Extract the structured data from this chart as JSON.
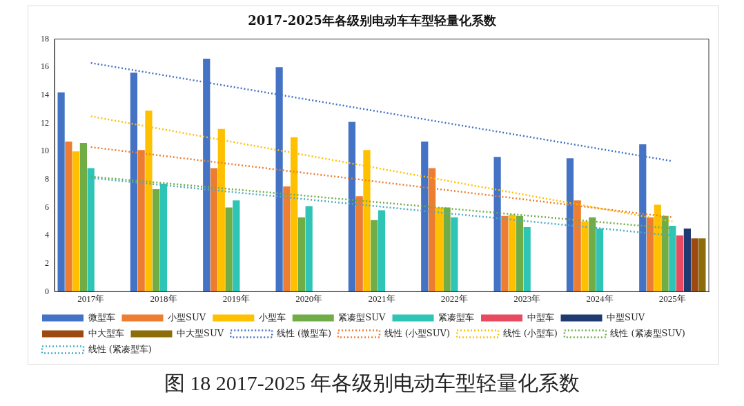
{
  "chart_data": {
    "type": "bar",
    "title": "2017-2025年各级别电动车车型轻量化系数",
    "categories": [
      "2017年",
      "2018年",
      "2019年",
      "2020年",
      "2021年",
      "2022年",
      "2023年",
      "2024年",
      "2025年"
    ],
    "ylim": [
      0,
      18
    ],
    "yticks": [
      0,
      2,
      4,
      6,
      8,
      10,
      12,
      14,
      16,
      18
    ],
    "grid": false,
    "legend": "bottom",
    "series": [
      {
        "name": "微型车",
        "color": "#4472c4",
        "values": [
          14.2,
          15.6,
          16.6,
          16.0,
          12.1,
          10.7,
          9.6,
          9.5,
          10.5
        ]
      },
      {
        "name": "小型SUV",
        "color": "#ed7d31",
        "values": [
          10.7,
          10.1,
          8.8,
          7.5,
          6.8,
          8.8,
          5.4,
          6.5,
          5.3
        ]
      },
      {
        "name": "小型车",
        "color": "#ffc000",
        "values": [
          10.0,
          12.9,
          11.6,
          11.0,
          10.1,
          6.0,
          5.5,
          5.0,
          6.2
        ]
      },
      {
        "name": "紧凑型SUV",
        "color": "#70ad47",
        "values": [
          10.6,
          7.3,
          6.0,
          5.3,
          5.1,
          6.0,
          5.4,
          5.3,
          5.4
        ]
      },
      {
        "name": "紧凑型车",
        "color": "#2ec4b6",
        "values": [
          8.8,
          7.7,
          6.5,
          6.1,
          5.8,
          5.3,
          4.6,
          4.5,
          4.7
        ]
      },
      {
        "name": "中型车",
        "color": "#e84a5f",
        "values": [
          null,
          null,
          null,
          null,
          null,
          null,
          null,
          null,
          4.0
        ]
      },
      {
        "name": "中型SUV",
        "color": "#1f3a70",
        "values": [
          null,
          null,
          null,
          null,
          null,
          null,
          null,
          null,
          4.5
        ]
      },
      {
        "name": "中大型车",
        "color": "#9c4a0f",
        "values": [
          null,
          null,
          null,
          null,
          null,
          null,
          null,
          null,
          3.8
        ]
      },
      {
        "name": "中大型SUV",
        "color": "#8c6d0a",
        "values": [
          null,
          null,
          null,
          null,
          null,
          null,
          null,
          null,
          3.8
        ]
      },
      {
        "name": "线性 (微型车)",
        "type": "line",
        "line_style": "dotted",
        "marker": "none",
        "color": "#4472c4",
        "x": [
          "2017年",
          "2025年"
        ],
        "values": [
          16.3,
          9.3
        ]
      },
      {
        "name": "线性 (小型SUV)",
        "type": "line",
        "line_style": "dotted",
        "marker": "none",
        "color": "#ed7d31",
        "x": [
          "2017年",
          "2025年"
        ],
        "values": [
          10.3,
          5.3
        ]
      },
      {
        "name": "线性 (小型车)",
        "type": "line",
        "line_style": "dotted",
        "marker": "none",
        "color": "#ffc000",
        "x": [
          "2017年",
          "2025年"
        ],
        "values": [
          12.5,
          5.0
        ]
      },
      {
        "name": "线性 (紧凑型SUV)",
        "type": "line",
        "line_style": "dotted",
        "marker": "none",
        "color": "#70ad47",
        "x": [
          "2017年",
          "2025年"
        ],
        "values": [
          8.2,
          4.5
        ]
      },
      {
        "name": "线性 (紧凑型车)",
        "type": "line",
        "line_style": "dotted",
        "marker": "none",
        "color": "#4bacc6",
        "x": [
          "2017年",
          "2025年"
        ],
        "values": [
          8.1,
          4.0
        ]
      }
    ],
    "annotations": [
      "图 18 2017-2025 年各级别电动车型轻量化系数"
    ]
  }
}
